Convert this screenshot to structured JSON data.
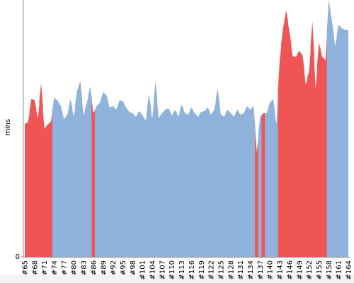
{
  "chart_data": {
    "type": "area",
    "ylabel": "mins",
    "categories": [
      "#65",
      null,
      null,
      "#68",
      null,
      null,
      "#71",
      null,
      null,
      "#74",
      null,
      null,
      "#77",
      null,
      null,
      "#80",
      null,
      null,
      "#83",
      null,
      null,
      "#86",
      null,
      null,
      "#89",
      null,
      null,
      "#92",
      null,
      null,
      "#95",
      null,
      null,
      "#98",
      null,
      null,
      "#101",
      null,
      null,
      "#104",
      null,
      null,
      "#107",
      null,
      null,
      "#110",
      null,
      null,
      "#113",
      null,
      null,
      "#116",
      null,
      null,
      "#119",
      null,
      null,
      "#122",
      null,
      null,
      "#125",
      null,
      null,
      "#128",
      null,
      null,
      "#131",
      null,
      null,
      "#134",
      null,
      null,
      "#137",
      null,
      null,
      "#140",
      null,
      null,
      "#143",
      null,
      null,
      "#146",
      null,
      null,
      "#149",
      null,
      null,
      "#152",
      null,
      null,
      "#155",
      null,
      null,
      "#158",
      null,
      null,
      "#161",
      null,
      null,
      "#164"
    ],
    "values": [
      18.8,
      19.0,
      22.3,
      22.2,
      19.5,
      24.5,
      18.1,
      18.7,
      19.1,
      22.5,
      22.1,
      21.3,
      19.5,
      20.1,
      22.3,
      19.8,
      23.5,
      24.8,
      20.0,
      21.8,
      24.1,
      20.3,
      21.3,
      21.8,
      23.3,
      22.8,
      21.1,
      21.3,
      20.8,
      22.1,
      22.0,
      21.1,
      20.5,
      20.3,
      19.8,
      20.6,
      20.0,
      19.3,
      23.0,
      19.5,
      24.8,
      19.6,
      20.3,
      20.8,
      21.0,
      20.0,
      20.8,
      19.8,
      21.5,
      20.3,
      20.1,
      21.1,
      20.3,
      19.8,
      20.5,
      20.6,
      21.1,
      20.1,
      20.8,
      23.8,
      20.1,
      19.8,
      20.8,
      20.3,
      19.8,
      20.8,
      20.1,
      20.3,
      21.3,
      20.8,
      21.3,
      14.8,
      19.8,
      20.3,
      20.3,
      21.8,
      22.3,
      18.8,
      27.8,
      32.3,
      34.8,
      31.8,
      28.3,
      28.3,
      29.1,
      28.5,
      24.3,
      26.3,
      33.3,
      23.8,
      30.3,
      28.3,
      27.8,
      36.3,
      33.3,
      29.8,
      32.8,
      32.3,
      32.1,
      32.1
    ],
    "colors": [
      "#ef5555",
      "#ef5555",
      "#ef5555",
      "#ef5555",
      "#ef5555",
      "#ef5555",
      "#ef5555",
      "#ef5555",
      "#ef5555",
      "#8fb3dc",
      "#8fb3dc",
      "#8fb3dc",
      "#8fb3dc",
      "#8fb3dc",
      "#8fb3dc",
      "#8fb3dc",
      "#8fb3dc",
      "#8fb3dc",
      "#8fb3dc",
      "#8fb3dc",
      "#8fb3dc",
      "#ef5555",
      "#8fb3dc",
      "#8fb3dc",
      "#8fb3dc",
      "#8fb3dc",
      "#8fb3dc",
      "#8fb3dc",
      "#8fb3dc",
      "#8fb3dc",
      "#8fb3dc",
      "#8fb3dc",
      "#8fb3dc",
      "#8fb3dc",
      "#8fb3dc",
      "#8fb3dc",
      "#8fb3dc",
      "#8fb3dc",
      "#8fb3dc",
      "#8fb3dc",
      "#8fb3dc",
      "#8fb3dc",
      "#8fb3dc",
      "#8fb3dc",
      "#8fb3dc",
      "#8fb3dc",
      "#8fb3dc",
      "#8fb3dc",
      "#8fb3dc",
      "#8fb3dc",
      "#8fb3dc",
      "#8fb3dc",
      "#8fb3dc",
      "#8fb3dc",
      "#8fb3dc",
      "#8fb3dc",
      "#8fb3dc",
      "#8fb3dc",
      "#8fb3dc",
      "#8fb3dc",
      "#8fb3dc",
      "#8fb3dc",
      "#8fb3dc",
      "#8fb3dc",
      "#8fb3dc",
      "#8fb3dc",
      "#8fb3dc",
      "#8fb3dc",
      "#8fb3dc",
      "#8fb3dc",
      "#8fb3dc",
      "#ef5555",
      "#8fb3dc",
      "#ef5555",
      "#8fb3dc",
      "#8fb3dc",
      "#8fb3dc",
      "#8fb3dc",
      "#ef5555",
      "#ef5555",
      "#ef5555",
      "#ef5555",
      "#ef5555",
      "#ef5555",
      "#ef5555",
      "#ef5555",
      "#ef5555",
      "#ef5555",
      "#ef5555",
      "#ef5555",
      "#ef5555",
      "#ef5555",
      "#ef5555",
      "#8fb3dc",
      "#8fb3dc",
      "#8fb3dc",
      "#8fb3dc",
      "#8fb3dc",
      "#8fb3dc",
      "#8fb3dc"
    ],
    "ylim": [
      0,
      36.3
    ],
    "yticks": [
      0
    ]
  }
}
